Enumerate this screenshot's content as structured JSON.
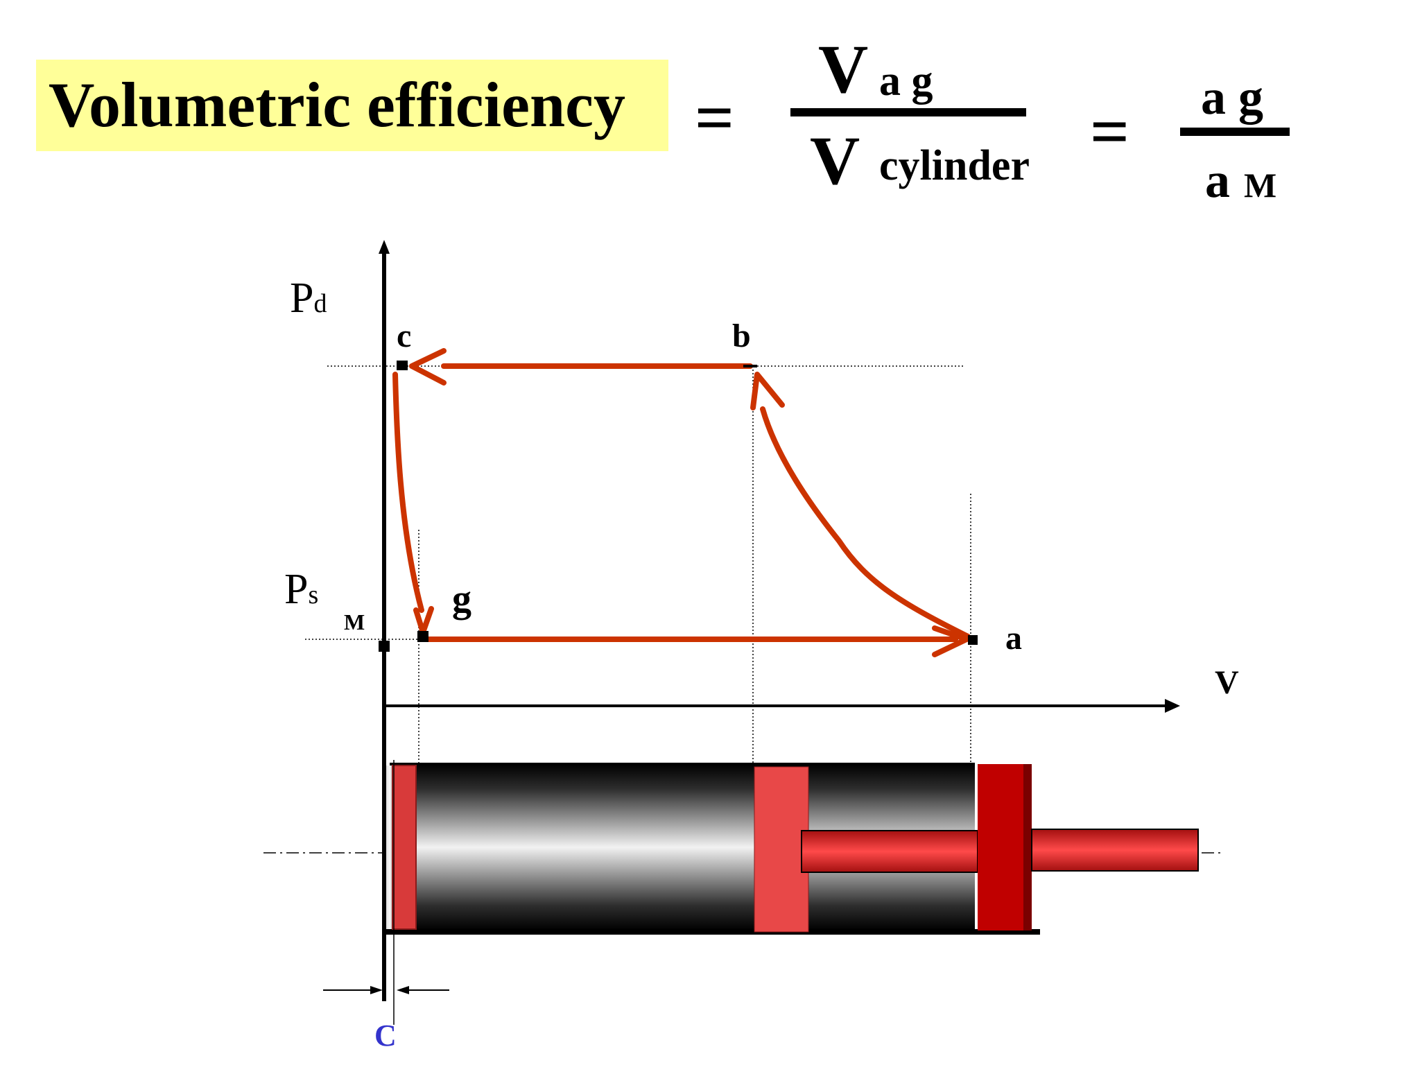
{
  "title": "Volumetric efficiency",
  "equation": {
    "eq_symbol": "=",
    "fraction1": {
      "num_main": "V",
      "num_sub": "a g",
      "den_main": "V",
      "den_sub": "cylinder"
    },
    "fraction2": {
      "num": "a g",
      "den_main": "a",
      "den_sub": "M"
    }
  },
  "diagram": {
    "axis_labels": {
      "pd_main": "P",
      "pd_sub": "d",
      "ps_main": "P",
      "ps_sub": "s",
      "v": "V"
    },
    "points": {
      "a": "a",
      "b": "b",
      "c": "c",
      "g": "g",
      "m": "M"
    },
    "clearance_label": "C",
    "colors": {
      "process_line": "#cc3300",
      "clearance_label": "#3333cc",
      "piston_red": "#e02020",
      "cylinder_dark": "#1a1a1a",
      "title_background": "#ffff99"
    }
  }
}
